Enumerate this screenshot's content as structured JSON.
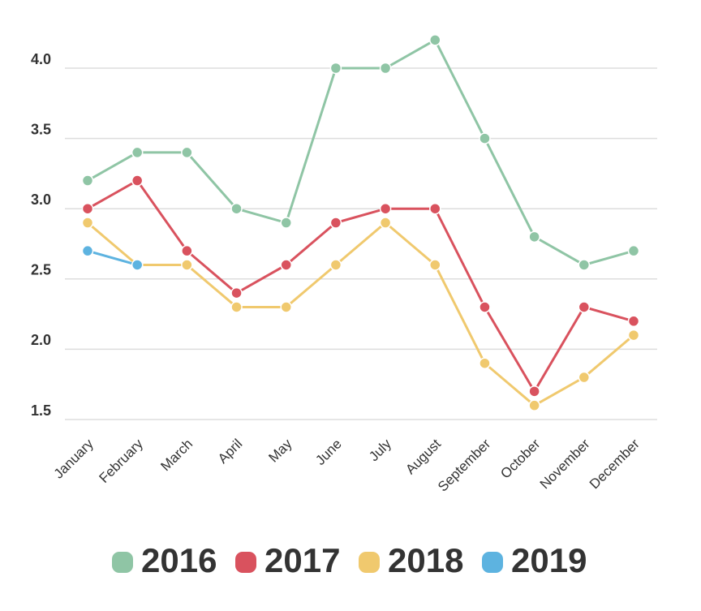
{
  "chart_data": {
    "type": "line",
    "categories": [
      "January",
      "February",
      "March",
      "April",
      "May",
      "June",
      "July",
      "August",
      "September",
      "October",
      "November",
      "December"
    ],
    "series": [
      {
        "name": "2016",
        "color": "#8fc5a5",
        "values": [
          3.2,
          3.4,
          3.4,
          3.0,
          2.9,
          4.0,
          4.0,
          4.2,
          3.5,
          2.8,
          2.6,
          2.7
        ]
      },
      {
        "name": "2017",
        "color": "#d9525e",
        "values": [
          3.0,
          3.2,
          2.7,
          2.4,
          2.6,
          2.9,
          3.0,
          3.0,
          2.3,
          1.7,
          2.3,
          2.2
        ]
      },
      {
        "name": "2018",
        "color": "#f0c96e",
        "values": [
          2.9,
          2.6,
          2.6,
          2.3,
          2.3,
          2.6,
          2.9,
          2.6,
          1.9,
          1.6,
          1.8,
          2.1
        ]
      },
      {
        "name": "2019",
        "color": "#5db3e0",
        "values": [
          2.7,
          2.6,
          null,
          null,
          null,
          null,
          null,
          null,
          null,
          null,
          null,
          null
        ]
      }
    ],
    "ylim": [
      1.5,
      4.2
    ],
    "yticks": [
      1.5,
      {
        "value": 2,
        "label": "2.0"
      },
      2.5,
      {
        "value": 3,
        "label": "3.0"
      },
      3.5,
      {
        "value": 4,
        "label": "4.0"
      }
    ],
    "grid": true,
    "legend": "bottom"
  }
}
